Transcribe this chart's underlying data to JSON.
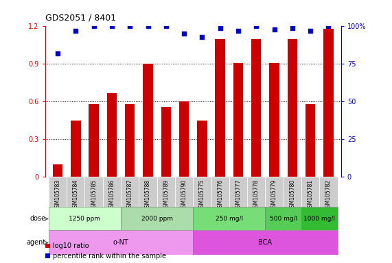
{
  "title": "GDS2051 / 8401",
  "samples": [
    "GSM105783",
    "GSM105784",
    "GSM105785",
    "GSM105786",
    "GSM105787",
    "GSM105788",
    "GSM105789",
    "GSM105790",
    "GSM105775",
    "GSM105776",
    "GSM105777",
    "GSM105778",
    "GSM105779",
    "GSM105780",
    "GSM105781",
    "GSM105782"
  ],
  "log10_ratio": [
    0.1,
    0.45,
    0.58,
    0.67,
    0.58,
    0.9,
    0.56,
    0.6,
    0.45,
    1.1,
    0.91,
    1.1,
    0.91,
    1.1,
    0.58,
    1.18
  ],
  "percentile_rank_pct": [
    82,
    97,
    100,
    100,
    100,
    100,
    100,
    95,
    93,
    99,
    97,
    100,
    98,
    99,
    97,
    100
  ],
  "bar_color": "#cc0000",
  "dot_color": "#0000cc",
  "ylim_left": [
    0,
    1.2
  ],
  "ylim_right": [
    0,
    100
  ],
  "yticks_left": [
    0,
    0.3,
    0.6,
    0.9,
    1.2
  ],
  "yticks_right": [
    0,
    25,
    50,
    75,
    100
  ],
  "dose_groups": [
    {
      "label": "1250 ppm",
      "start": 0,
      "end": 3,
      "color": "#ccffcc"
    },
    {
      "label": "2000 ppm",
      "start": 4,
      "end": 7,
      "color": "#aaddaa"
    },
    {
      "label": "250 mg/l",
      "start": 8,
      "end": 11,
      "color": "#77dd77"
    },
    {
      "label": "500 mg/l",
      "start": 12,
      "end": 13,
      "color": "#55cc55"
    },
    {
      "label": "1000 mg/l",
      "start": 14,
      "end": 15,
      "color": "#33bb33"
    }
  ],
  "agent_groups": [
    {
      "label": "o-NT",
      "start": 0,
      "end": 7,
      "color": "#ee99ee"
    },
    {
      "label": "BCA",
      "start": 8,
      "end": 15,
      "color": "#dd55dd"
    }
  ],
  "legend_items": [
    {
      "color": "#cc0000",
      "label": "log10 ratio"
    },
    {
      "color": "#0000cc",
      "label": "percentile rank within the sample"
    }
  ],
  "xlabel_dose": "dose",
  "xlabel_agent": "agent",
  "background_color": "#ffffff",
  "xticklabel_bg": "#cccccc"
}
